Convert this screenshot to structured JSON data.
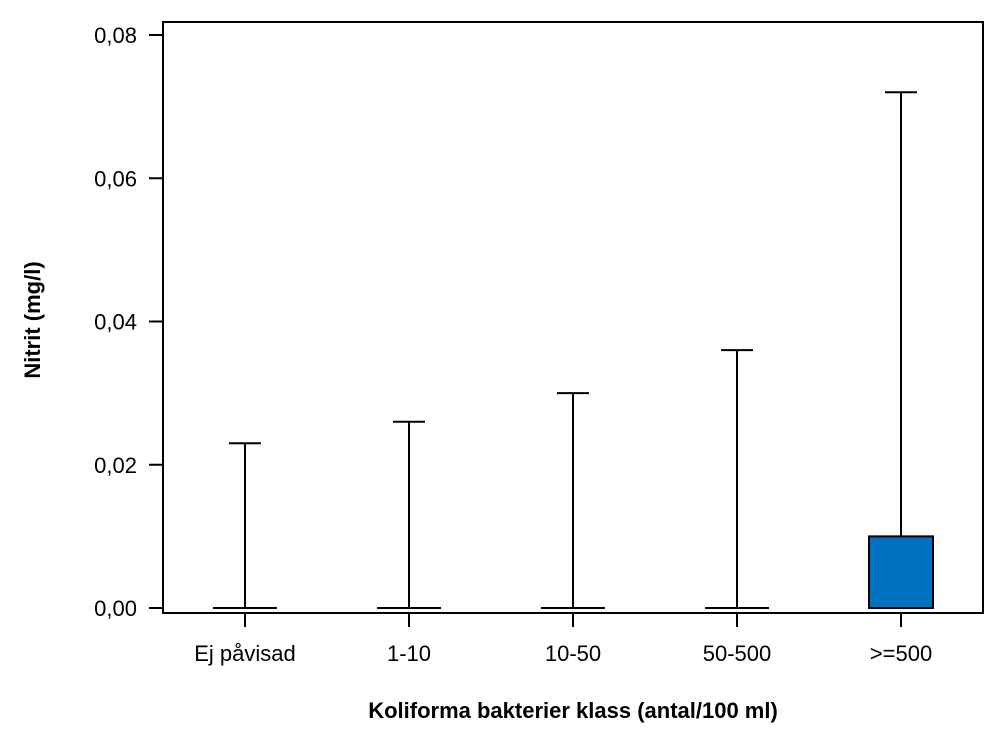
{
  "chart_data": {
    "type": "bar",
    "categories": [
      "Ej påvisad",
      "1-10",
      "10-50",
      "50-500",
      ">=500"
    ],
    "values": [
      0.0,
      0.0,
      0.0,
      0.0,
      0.01
    ],
    "error_upper": [
      0.023,
      0.026,
      0.03,
      0.036,
      0.072
    ],
    "xlabel": "Koliforma bakterier klass (antal/100 ml)",
    "ylabel": "Nitrit (mg/l)",
    "ylim": [
      0,
      0.08
    ],
    "yticks": [
      "0,00",
      "0,02",
      "0,04",
      "0,06",
      "0,08"
    ],
    "bar_color": "#0070C0",
    "grid": false,
    "legend": "none"
  }
}
